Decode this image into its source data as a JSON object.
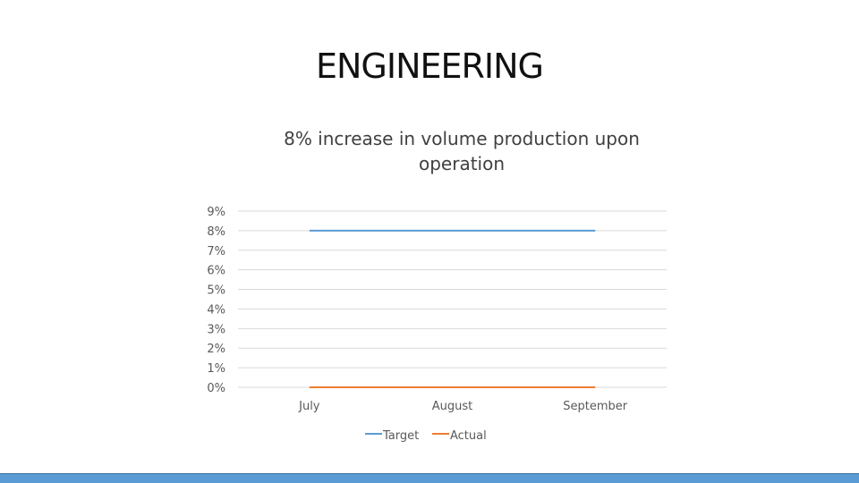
{
  "slide": {
    "title": "ENGINEERING"
  },
  "colors": {
    "target": "#5b9bd5",
    "actual": "#ed7d31",
    "gridline": "#d9d9d9",
    "footer": "#5b9bd5"
  },
  "chart_data": {
    "type": "line",
    "title_lines": [
      "8% increase in volume production upon",
      "operation"
    ],
    "categories": [
      "July",
      "August",
      "September"
    ],
    "series": [
      {
        "name": "Target",
        "values": [
          8,
          8,
          8
        ],
        "color": "#5b9bd5"
      },
      {
        "name": "Actual",
        "values": [
          0,
          0,
          0
        ],
        "color": "#ed7d31"
      }
    ],
    "yticks": [
      "9%",
      "8%",
      "7%",
      "6%",
      "5%",
      "4%",
      "3%",
      "2%",
      "1%",
      "0%"
    ],
    "ylim": [
      0,
      9
    ],
    "y_unit": "%",
    "grid": true,
    "legend_position": "bottom"
  }
}
